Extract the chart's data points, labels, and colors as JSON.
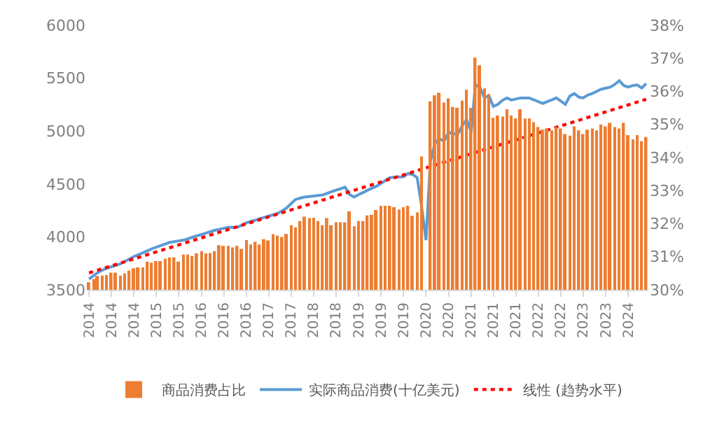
{
  "chart_data": {
    "type": "bar",
    "x": [
      "2014-01",
      "2014-02",
      "2014-03",
      "2014-04",
      "2014-05",
      "2014-06",
      "2014-07",
      "2014-08",
      "2014-09",
      "2014-10",
      "2014-11",
      "2014-12",
      "2015-01",
      "2015-02",
      "2015-03",
      "2015-04",
      "2015-05",
      "2015-06",
      "2015-07",
      "2015-08",
      "2015-09",
      "2015-10",
      "2015-11",
      "2015-12",
      "2016-01",
      "2016-02",
      "2016-03",
      "2016-04",
      "2016-05",
      "2016-06",
      "2016-07",
      "2016-08",
      "2016-09",
      "2016-10",
      "2016-11",
      "2016-12",
      "2017-01",
      "2017-02",
      "2017-03",
      "2017-04",
      "2017-05",
      "2017-06",
      "2017-07",
      "2017-08",
      "2017-09",
      "2017-10",
      "2017-11",
      "2017-12",
      "2018-01",
      "2018-02",
      "2018-03",
      "2018-04",
      "2018-05",
      "2018-06",
      "2018-07",
      "2018-08",
      "2018-09",
      "2018-10",
      "2018-11",
      "2018-12",
      "2019-01",
      "2019-02",
      "2019-03",
      "2019-04",
      "2019-05",
      "2019-06",
      "2019-07",
      "2019-08",
      "2019-09",
      "2019-10",
      "2019-11",
      "2019-12",
      "2020-01",
      "2020-02",
      "2020-03",
      "2020-04",
      "2020-05",
      "2020-06",
      "2020-07",
      "2020-08",
      "2020-09",
      "2020-10",
      "2020-11",
      "2020-12",
      "2021-01",
      "2021-02",
      "2021-03",
      "2021-04",
      "2021-05",
      "2021-06",
      "2021-07",
      "2021-08",
      "2021-09",
      "2021-10",
      "2021-11",
      "2021-12",
      "2022-01",
      "2022-02",
      "2022-03",
      "2022-04",
      "2022-05",
      "2022-06",
      "2022-07",
      "2022-08",
      "2022-09",
      "2022-10",
      "2022-11",
      "2022-12",
      "2023-01",
      "2023-02",
      "2023-03",
      "2023-04",
      "2023-05",
      "2023-06",
      "2023-07",
      "2023-08",
      "2023-09",
      "2023-10",
      "2023-11",
      "2023-12",
      "2024-01",
      "2024-02",
      "2024-03",
      "2024-04",
      "2024-05"
    ],
    "series": [
      {
        "name": "商品消费占比",
        "axis": "y2",
        "color": "#ed7d31",
        "values": [
          30.23,
          30.33,
          30.42,
          30.43,
          30.45,
          30.52,
          30.52,
          30.43,
          30.5,
          30.58,
          30.65,
          30.68,
          30.68,
          30.85,
          30.82,
          30.87,
          30.87,
          30.94,
          30.98,
          30.98,
          30.85,
          31.07,
          31.07,
          31.02,
          31.1,
          31.17,
          31.1,
          31.11,
          31.17,
          31.35,
          31.33,
          31.33,
          31.28,
          31.33,
          31.24,
          31.5,
          31.37,
          31.45,
          31.37,
          31.53,
          31.49,
          31.68,
          31.64,
          31.6,
          31.69,
          31.95,
          31.89,
          32.08,
          32.21,
          32.17,
          32.18,
          32.08,
          31.95,
          32.17,
          31.95,
          32.04,
          32.04,
          32.04,
          32.37,
          31.92,
          32.08,
          32.08,
          32.25,
          32.27,
          32.41,
          32.54,
          32.54,
          32.54,
          32.5,
          32.43,
          32.5,
          32.54,
          32.24,
          32.34,
          34.03,
          null,
          35.7,
          35.88,
          35.96,
          35.66,
          35.79,
          35.53,
          35.5,
          35.72,
          36.05,
          35.5,
          37.02,
          36.79,
          36.09,
          35.92,
          35.2,
          35.27,
          35.24,
          35.46,
          35.27,
          35.18,
          35.46,
          35.18,
          35.18,
          35.07,
          34.92,
          34.84,
          34.88,
          34.82,
          34.92,
          34.88,
          34.71,
          34.66,
          34.94,
          34.82,
          34.71,
          34.84,
          34.88,
          34.82,
          35.0,
          34.94,
          35.05,
          34.92,
          34.88,
          35.05,
          34.68,
          34.55,
          34.68,
          34.49,
          34.62
        ]
      },
      {
        "name": "实际商品消费(十亿美元)",
        "type": "line",
        "axis": "y",
        "color": "#5b9bd5",
        "line_style": "solid",
        "values": [
          3602,
          3635,
          3663,
          3685,
          3704,
          3718,
          3731,
          3745,
          3768,
          3791,
          3814,
          3832,
          3850,
          3868,
          3887,
          3902,
          3917,
          3932,
          3948,
          3955,
          3962,
          3969,
          3982,
          3996,
          4009,
          4022,
          4035,
          4049,
          4062,
          4071,
          4081,
          4091,
          4091,
          4091,
          4110,
          4132,
          4145,
          4158,
          4172,
          4184,
          4196,
          4208,
          4221,
          4246,
          4274,
          4315,
          4355,
          4366,
          4376,
          4381,
          4386,
          4391,
          4396,
          4411,
          4426,
          4441,
          4455,
          4470,
          4400,
          4376,
          4400,
          4420,
          4440,
          4460,
          4478,
          4505,
          4533,
          4560,
          4563,
          4566,
          4568,
          4598,
          4590,
          4560,
          4300,
          3969,
          4722,
          4886,
          4926,
          4906,
          4987,
          4977,
          4967,
          5048,
          5110,
          4987,
          5436,
          5415,
          5313,
          5334,
          5232,
          5252,
          5290,
          5313,
          5293,
          5303,
          5313,
          5313,
          5313,
          5295,
          5278,
          5260,
          5278,
          5295,
          5313,
          5283,
          5252,
          5330,
          5354,
          5320,
          5313,
          5340,
          5354,
          5375,
          5395,
          5405,
          5415,
          5440,
          5476,
          5430,
          5415,
          5430,
          5436,
          5407,
          5448
        ]
      },
      {
        "name": "线性 (趋势水平)",
        "type": "line",
        "axis": "y",
        "color": "#ff0000",
        "line_style": "dotted",
        "x": [
          "2014-01",
          "2024-05"
        ],
        "values": [
          3660,
          5300
        ]
      }
    ],
    "xlim": [
      "2013-12-17",
      "2024-05-16"
    ],
    "xticks": [
      {
        "value": "2014-01",
        "label": "2014"
      },
      {
        "value": "2014-06",
        "label": "2014"
      },
      {
        "value": "2014-11",
        "label": "2014"
      },
      {
        "value": "2015-04",
        "label": "2015"
      },
      {
        "value": "2015-09",
        "label": "2015"
      },
      {
        "value": "2016-02",
        "label": "2016"
      },
      {
        "value": "2016-07",
        "label": "2016"
      },
      {
        "value": "2016-12",
        "label": "2016"
      },
      {
        "value": "2017-05",
        "label": "2017"
      },
      {
        "value": "2017-10",
        "label": "2017"
      },
      {
        "value": "2018-03",
        "label": "2018"
      },
      {
        "value": "2018-08",
        "label": "2018"
      },
      {
        "value": "2019-01",
        "label": "2019"
      },
      {
        "value": "2019-06",
        "label": "2019"
      },
      {
        "value": "2019-11",
        "label": "2019"
      },
      {
        "value": "2020-04",
        "label": "2020"
      },
      {
        "value": "2020-09",
        "label": "2020"
      },
      {
        "value": "2021-02",
        "label": "2021"
      },
      {
        "value": "2021-07",
        "label": "2021"
      },
      {
        "value": "2021-12",
        "label": "2021"
      },
      {
        "value": "2022-05",
        "label": "2022"
      },
      {
        "value": "2022-10",
        "label": "2022"
      },
      {
        "value": "2023-03",
        "label": "2023"
      },
      {
        "value": "2023-08",
        "label": "2023"
      },
      {
        "value": "2024-01",
        "label": "2024"
      }
    ],
    "ylim": [
      3500,
      6000
    ],
    "yticks": [
      3500,
      4000,
      4500,
      5000,
      5500,
      6000
    ],
    "y2lim": [
      30,
      38
    ],
    "y2ticks": [
      {
        "value": 30,
        "label": "30%"
      },
      {
        "value": 31,
        "label": "31%"
      },
      {
        "value": 32,
        "label": "32%"
      },
      {
        "value": 33,
        "label": "33%"
      },
      {
        "value": 34,
        "label": "34%"
      },
      {
        "value": 35,
        "label": "35%"
      },
      {
        "value": 36,
        "label": "36%"
      },
      {
        "value": 37,
        "label": "37%"
      },
      {
        "value": 38,
        "label": "38%"
      }
    ],
    "grid": false,
    "legend": "bottom"
  }
}
